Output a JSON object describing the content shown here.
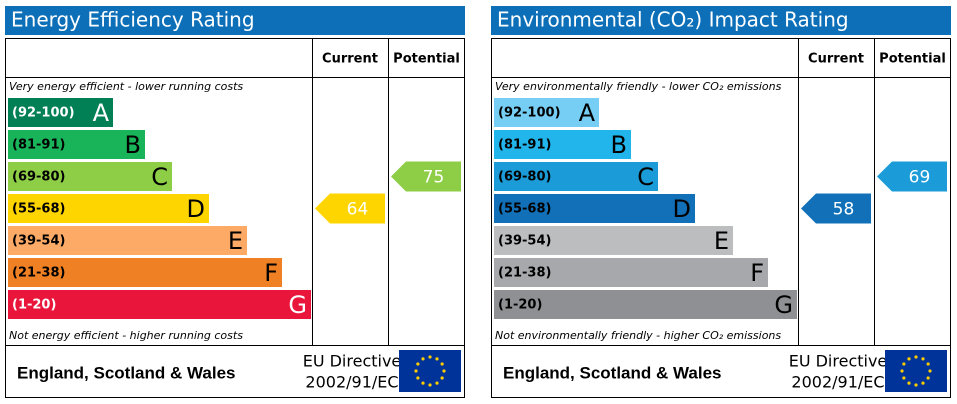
{
  "panels": [
    {
      "title": "Energy Efficiency Rating",
      "headers": [
        "Current",
        "Potential"
      ],
      "top_note": "Very energy efficient - lower running costs",
      "bottom_note": "Not energy efficient - higher running costs",
      "bands": [
        {
          "range": "(92-100)",
          "letter": "A",
          "color": "#008054"
        },
        {
          "range": "(81-91)",
          "letter": "B",
          "color": "#19b459"
        },
        {
          "range": "(69-80)",
          "letter": "C",
          "color": "#8dce46"
        },
        {
          "range": "(55-68)",
          "letter": "D",
          "color": "#ffd500"
        },
        {
          "range": "(39-54)",
          "letter": "E",
          "color": "#fcaa65"
        },
        {
          "range": "(21-38)",
          "letter": "F",
          "color": "#ef8023"
        },
        {
          "range": "(1-20)",
          "letter": "G",
          "color": "#e9153b"
        }
      ],
      "current": 64,
      "potential": 75,
      "footer": "England, Scotland & Wales",
      "directive": [
        "EU Directive",
        "2002/91/EC"
      ]
    },
    {
      "title": "Environmental (CO₂) Impact Rating",
      "headers": [
        "Current",
        "Potential"
      ],
      "top_note": "Very environmentally friendly - lower CO₂ emissions",
      "bottom_note": "Not environmentally friendly - higher CO₂ emissions",
      "bands": [
        {
          "range": "(92-100)",
          "letter": "A",
          "color": "#76cef4"
        },
        {
          "range": "(81-91)",
          "letter": "B",
          "color": "#22b5eb"
        },
        {
          "range": "(69-80)",
          "letter": "C",
          "color": "#1b9bd7"
        },
        {
          "range": "(55-68)",
          "letter": "D",
          "color": "#1170b7"
        },
        {
          "range": "(39-54)",
          "letter": "E",
          "color": "#bbbdbf"
        },
        {
          "range": "(21-38)",
          "letter": "F",
          "color": "#a6a8ab"
        },
        {
          "range": "(1-20)",
          "letter": "G",
          "color": "#8e9093"
        }
      ],
      "current": 58,
      "potential": 69,
      "footer": "England, Scotland & Wales",
      "directive": [
        "EU Directive",
        "2002/91/EC"
      ]
    }
  ]
}
